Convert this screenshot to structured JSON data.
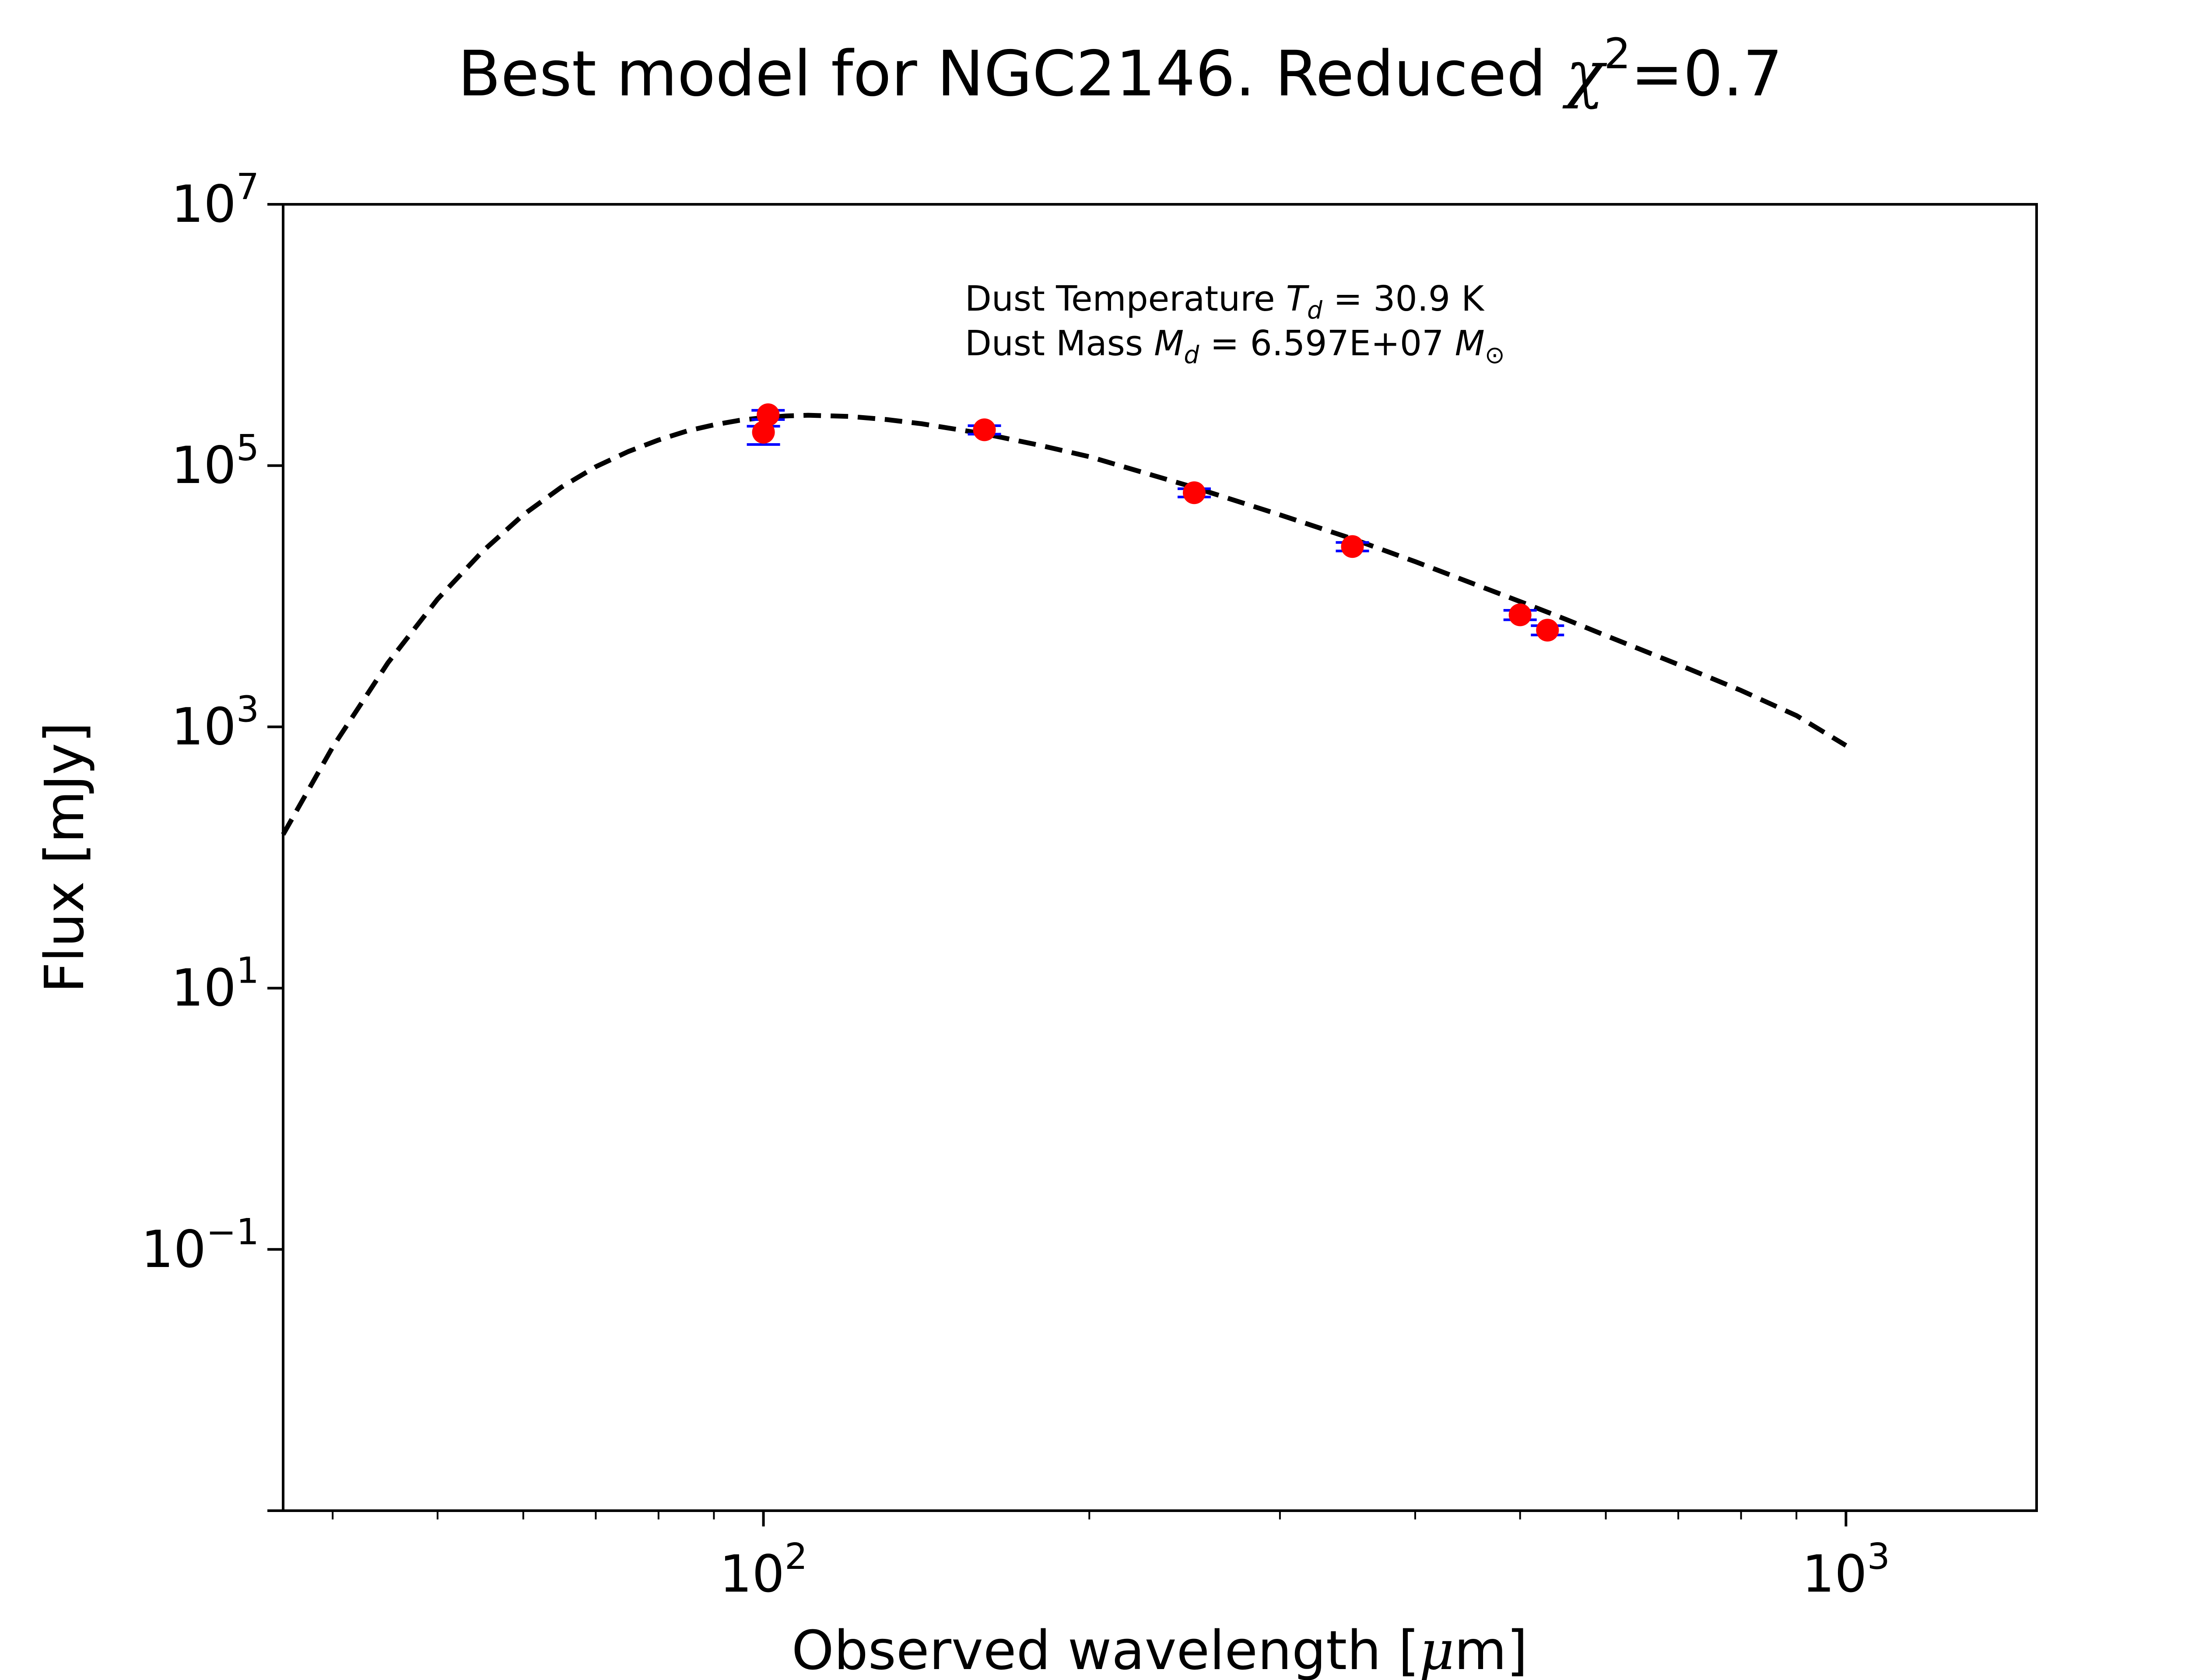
{
  "chart_data": {
    "type": "scatter",
    "title": {
      "prefix": "Best model for NGC2146. Reduced ",
      "chi": "χ",
      "sup": "2",
      "value": "=0.7"
    },
    "xlabel": {
      "text": "Observed wavelength [",
      "mu": "μ",
      "unit": "m]"
    },
    "ylabel": "Flux [mJy]",
    "xscale": "log",
    "yscale": "log",
    "xlim": [
      36,
      1500
    ],
    "ylim": [
      0.001,
      10000000
    ],
    "grid": false,
    "x_ticks": [
      {
        "value": 100,
        "base": "10",
        "exp": "2"
      },
      {
        "value": 1000,
        "base": "10",
        "exp": "3"
      }
    ],
    "y_ticks": [
      {
        "value": 0.1,
        "base": "10",
        "exp": "−1"
      },
      {
        "value": 10,
        "base": "10",
        "exp": "1"
      },
      {
        "value": 1000,
        "base": "10",
        "exp": "3"
      },
      {
        "value": 100000,
        "base": "10",
        "exp": "5"
      },
      {
        "value": 10000000,
        "base": "10",
        "exp": "7"
      }
    ],
    "annotations": {
      "temperature": {
        "prefix": "Dust Temperature ",
        "sym": "T",
        "sub": "d",
        "value": " = 30.9 K"
      },
      "mass": {
        "prefix": "Dust Mass ",
        "sym": "M",
        "sub": "d",
        "value": " = 6.597E+07 ",
        "unit": "M",
        "unit_sub": "⊙"
      }
    },
    "series": [
      {
        "kind": "model",
        "style": "dashed",
        "color": "#000000",
        "x": [
          36,
          40,
          45,
          50,
          55,
          60,
          65,
          70,
          75,
          80,
          85,
          90,
          95,
          100,
          105,
          110,
          120,
          130,
          140,
          160,
          180,
          200,
          250,
          300,
          350,
          400,
          450,
          500,
          550,
          600,
          700,
          800,
          900,
          1000
        ],
        "y": [
          150,
          700,
          3100,
          9500,
          22000,
          42000,
          68000,
          98000,
          128000,
          157000,
          184000,
          205000,
          222000,
          233000,
          240000,
          243000,
          238000,
          225000,
          209000,
          175000,
          143000,
          117000,
          68000,
          42000,
          27500,
          18400,
          12700,
          9100,
          6700,
          5000,
          3000,
          1900,
          1220,
          720
        ]
      },
      {
        "kind": "observed",
        "marker": "circle",
        "color": "#ff0000",
        "errorbar_color": "#0000ff",
        "x": [
          100,
          101,
          160,
          250,
          350,
          500,
          530
        ],
        "y": [
          180000,
          245000,
          188000,
          62000,
          24000,
          7200,
          5500
        ],
        "yerr_low": [
          35000,
          20000,
          14000,
          4500,
          1800,
          600,
          450
        ],
        "yerr_high": [
          20000,
          20000,
          14000,
          4500,
          1800,
          600,
          450
        ]
      }
    ]
  }
}
